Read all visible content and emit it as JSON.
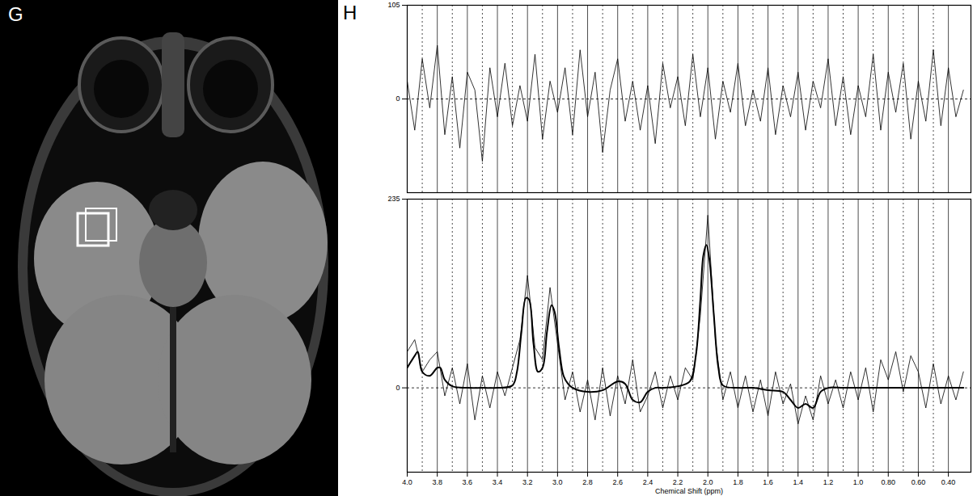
{
  "figure_labels": [
    "G",
    "H"
  ],
  "chart_data": [
    {
      "type": "line",
      "xlim": [
        4.0,
        0.25
      ],
      "ylim": [
        -105,
        105
      ],
      "xticks": [
        {
          "value": 4,
          "label": "4.0"
        },
        3.8,
        3.6,
        3.4,
        3.2,
        {
          "value": 3,
          "label": "3.0"
        },
        2.8,
        2.6,
        2.4,
        2.2,
        {
          "value": 2,
          "label": "2.0"
        },
        1.8,
        1.6,
        1.4,
        1.2,
        {
          "value": 1,
          "label": "1.0"
        },
        {
          "value": 0.8,
          "label": "0.80"
        },
        {
          "value": 0.6,
          "label": "0.60"
        },
        {
          "value": 0.4,
          "label": "0.40"
        }
      ],
      "yticks": [
        0,
        105
      ],
      "grid": true,
      "tick_labels": "y",
      "series": [
        {
          "color": "#000000",
          "line_style": "solid",
          "x": [
            4,
            3.95,
            3.9,
            3.85,
            3.8,
            3.75,
            3.7,
            3.65,
            3.6,
            3.55,
            3.5,
            3.45,
            3.4,
            3.35,
            3.3,
            3.25,
            3.2,
            3.15,
            3.1,
            3.05,
            3,
            2.95,
            2.9,
            2.85,
            2.8,
            2.75,
            2.7,
            2.65,
            2.6,
            2.55,
            2.5,
            2.45,
            2.4,
            2.35,
            2.3,
            2.25,
            2.2,
            2.15,
            2.1,
            2.05,
            2,
            1.95,
            1.9,
            1.85,
            1.8,
            1.75,
            1.7,
            1.65,
            1.6,
            1.55,
            1.5,
            1.45,
            1.4,
            1.35,
            1.3,
            1.25,
            1.2,
            1.15,
            1.1,
            1.05,
            1,
            0.95,
            0.9,
            0.85,
            0.8,
            0.75,
            0.7,
            0.65,
            0.6,
            0.55,
            0.5,
            0.45,
            0.4,
            0.35,
            0.3
          ],
          "values": [
            20,
            -35,
            45,
            -10,
            60,
            -40,
            25,
            -55,
            30,
            10,
            -70,
            35,
            -20,
            40,
            -30,
            15,
            -25,
            50,
            -45,
            20,
            -15,
            35,
            -40,
            55,
            -20,
            30,
            -60,
            10,
            45,
            -25,
            20,
            -35,
            15,
            -50,
            40,
            -10,
            25,
            -30,
            50,
            -20,
            35,
            -45,
            20,
            -15,
            40,
            -30,
            10,
            -25,
            35,
            -40,
            15,
            -20,
            30,
            -35,
            20,
            -10,
            45,
            -30,
            25,
            -40,
            15,
            -20,
            50,
            -35,
            30,
            -15,
            40,
            -45,
            20,
            -25,
            55,
            -30,
            35,
            -20,
            10
          ]
        }
      ]
    },
    {
      "type": "line",
      "x_label": "Chemical Shift (ppm)",
      "xlim": [
        4.0,
        0.25
      ],
      "ylim": [
        -105,
        235
      ],
      "xticks": [
        {
          "value": 4,
          "label": "4.0"
        },
        3.8,
        3.6,
        3.4,
        3.2,
        {
          "value": 3,
          "label": "3.0"
        },
        2.8,
        2.6,
        2.4,
        2.2,
        {
          "value": 2,
          "label": "2.0"
        },
        1.8,
        1.6,
        1.4,
        1.2,
        {
          "value": 1,
          "label": "1.0"
        },
        {
          "value": 0.8,
          "label": "0.80"
        },
        {
          "value": 0.6,
          "label": "0.60"
        },
        {
          "value": 0.4,
          "label": "0.40"
        }
      ],
      "yticks": [
        0,
        235
      ],
      "grid": true,
      "tick_labels": true,
      "series": [
        {
          "color": "#000000",
          "line_style": "solid",
          "x": [
            4,
            3.95,
            3.9,
            3.85,
            3.8,
            3.75,
            3.7,
            3.65,
            3.6,
            3.55,
            3.5,
            3.45,
            3.4,
            3.35,
            3.3,
            3.25,
            3.2,
            3.15,
            3.1,
            3.05,
            3,
            2.95,
            2.9,
            2.85,
            2.8,
            2.75,
            2.7,
            2.65,
            2.6,
            2.55,
            2.5,
            2.45,
            2.4,
            2.35,
            2.3,
            2.25,
            2.2,
            2.15,
            2.1,
            2.05,
            2,
            1.95,
            1.9,
            1.85,
            1.8,
            1.75,
            1.7,
            1.65,
            1.6,
            1.55,
            1.5,
            1.45,
            1.4,
            1.35,
            1.3,
            1.25,
            1.2,
            1.15,
            1.1,
            1.05,
            1,
            0.95,
            0.9,
            0.85,
            0.8,
            0.75,
            0.7,
            0.65,
            0.6,
            0.55,
            0.5,
            0.45,
            0.4,
            0.35,
            0.3
          ],
          "values": [
            45,
            60,
            20,
            35,
            45,
            -10,
            25,
            -20,
            30,
            -40,
            15,
            -25,
            20,
            -10,
            25,
            60,
            140,
            50,
            35,
            125,
            55,
            -15,
            20,
            -30,
            10,
            -40,
            25,
            -35,
            15,
            -20,
            35,
            -30,
            -10,
            20,
            -25,
            15,
            -15,
            25,
            10,
            90,
            215,
            60,
            -15,
            20,
            -25,
            15,
            -30,
            10,
            -35,
            20,
            -20,
            5,
            -45,
            -10,
            -40,
            15,
            -20,
            10,
            -25,
            20,
            -15,
            25,
            -30,
            35,
            10,
            45,
            -5,
            40,
            20,
            -25,
            30,
            -20,
            15,
            -15,
            20
          ]
        },
        {
          "color": "#000000",
          "line_style": "solid",
          "x": [
            4,
            3.95,
            3.93,
            3.9,
            3.85,
            3.8,
            3.78,
            3.75,
            3.7,
            3.6,
            3.5,
            3.4,
            3.3,
            3.27,
            3.24,
            3.21,
            3.19,
            3.16,
            3.13,
            3.1,
            3.07,
            3.04,
            3.02,
            2.99,
            2.96,
            2.93,
            2.9,
            2.8,
            2.7,
            2.6,
            2.55,
            2.5,
            2.45,
            2.4,
            2.35,
            2.3,
            2.2,
            2.12,
            2.08,
            2.05,
            2.03,
            2.01,
            1.99,
            1.96,
            1.93,
            1.9,
            1.8,
            1.7,
            1.6,
            1.5,
            1.45,
            1.4,
            1.35,
            1.3,
            1.25,
            1.2,
            1.1,
            1.0,
            0.8,
            0.6,
            0.4,
            0.3
          ],
          "values": [
            25,
            40,
            45,
            20,
            15,
            25,
            25,
            10,
            2,
            0,
            0,
            0,
            3,
            20,
            70,
            112,
            110,
            55,
            20,
            25,
            70,
            103,
            95,
            50,
            15,
            5,
            0,
            -5,
            -3,
            8,
            5,
            -15,
            -18,
            -5,
            0,
            0,
            2,
            8,
            40,
            110,
            165,
            178,
            160,
            90,
            25,
            3,
            0,
            0,
            -3,
            -5,
            -15,
            -25,
            -20,
            -25,
            -5,
            0,
            0,
            0,
            0,
            0,
            0,
            0
          ]
        }
      ]
    }
  ]
}
